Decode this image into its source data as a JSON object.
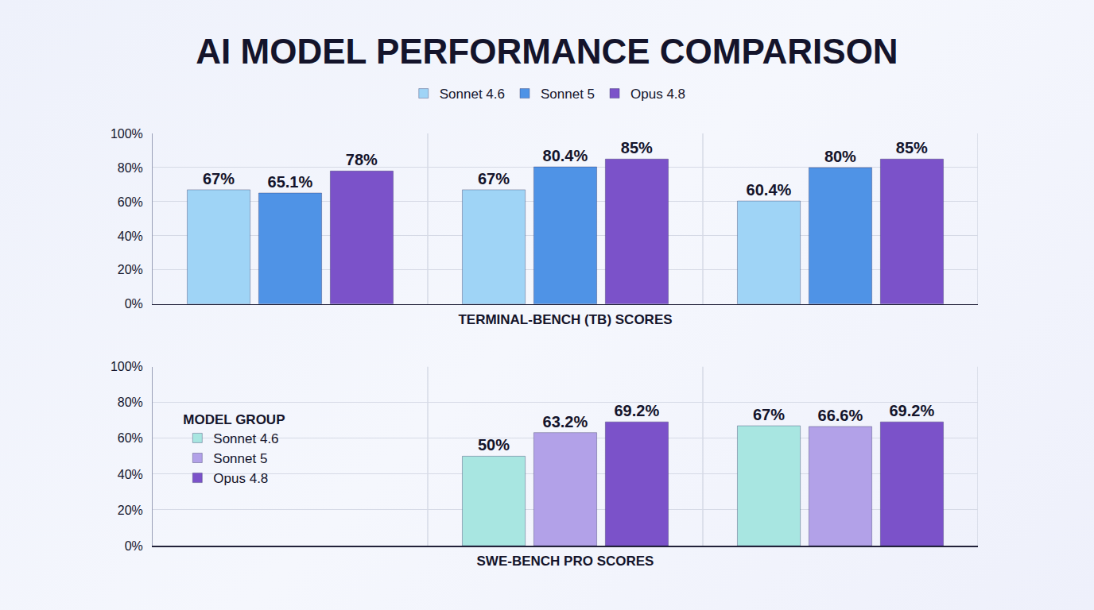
{
  "title": "AI MODEL PERFORMANCE COMPARISON",
  "chart_data": [
    {
      "type": "bar",
      "xlabel": "TERMINAL-BENCH (TB) SCORES",
      "categories": [
        null,
        null,
        null
      ],
      "series": [
        {
          "name": "Sonnet 4.6",
          "color": "#9fd4f6",
          "values": [
            67,
            67,
            60.4
          ],
          "value_labels": [
            "67%",
            "67%",
            "60.4%"
          ]
        },
        {
          "name": "Sonnet 5",
          "color": "#4f93e6",
          "values": [
            65.1,
            80.4,
            80
          ],
          "value_labels": [
            "65.1%",
            "80.4%",
            "80%"
          ]
        },
        {
          "name": "Opus 4.8",
          "color": "#7b52c9",
          "values": [
            78,
            85,
            85
          ],
          "value_labels": [
            "78%",
            "85%",
            "85%"
          ]
        }
      ],
      "ylim": [
        0,
        100
      ],
      "yticks": [
        {
          "value": 0,
          "label": "0%"
        },
        {
          "value": 20,
          "label": "20%"
        },
        {
          "value": 40,
          "label": "40%"
        },
        {
          "value": 60,
          "label": "60%"
        },
        {
          "value": 80,
          "label": "80%"
        },
        {
          "value": 100,
          "label": "100%"
        }
      ],
      "grid": true,
      "legend": "top",
      "data_labels": true,
      "tick_labels": "y"
    },
    {
      "type": "bar",
      "xlabel": "SWE-BENCH PRO SCORES",
      "legend_title": "MODEL GROUP",
      "categories": [
        null,
        null,
        null
      ],
      "series": [
        {
          "name": "Sonnet 4.6",
          "color": "#a8e6e1",
          "values": [
            null,
            50,
            67
          ],
          "value_labels": [
            null,
            "50%",
            "67%"
          ]
        },
        {
          "name": "Sonnet 5",
          "color": "#b2a1e8",
          "values": [
            null,
            63.2,
            66.6
          ],
          "value_labels": [
            null,
            "63.2%",
            "66.6%"
          ]
        },
        {
          "name": "Opus 4.8",
          "color": "#7b52c9",
          "values": [
            null,
            69.2,
            69.2
          ],
          "value_labels": [
            null,
            "69.2%",
            "69.2%"
          ]
        }
      ],
      "ylim": [
        0,
        100
      ],
      "yticks": [
        {
          "value": 0,
          "label": "0%"
        },
        {
          "value": 20,
          "label": "20%"
        },
        {
          "value": 40,
          "label": "40%"
        },
        {
          "value": 60,
          "label": "60%"
        },
        {
          "value": 80,
          "label": "80%"
        },
        {
          "value": 100,
          "label": "100%"
        }
      ],
      "grid": true,
      "legend": "left",
      "data_labels": true,
      "tick_labels": "y"
    }
  ]
}
